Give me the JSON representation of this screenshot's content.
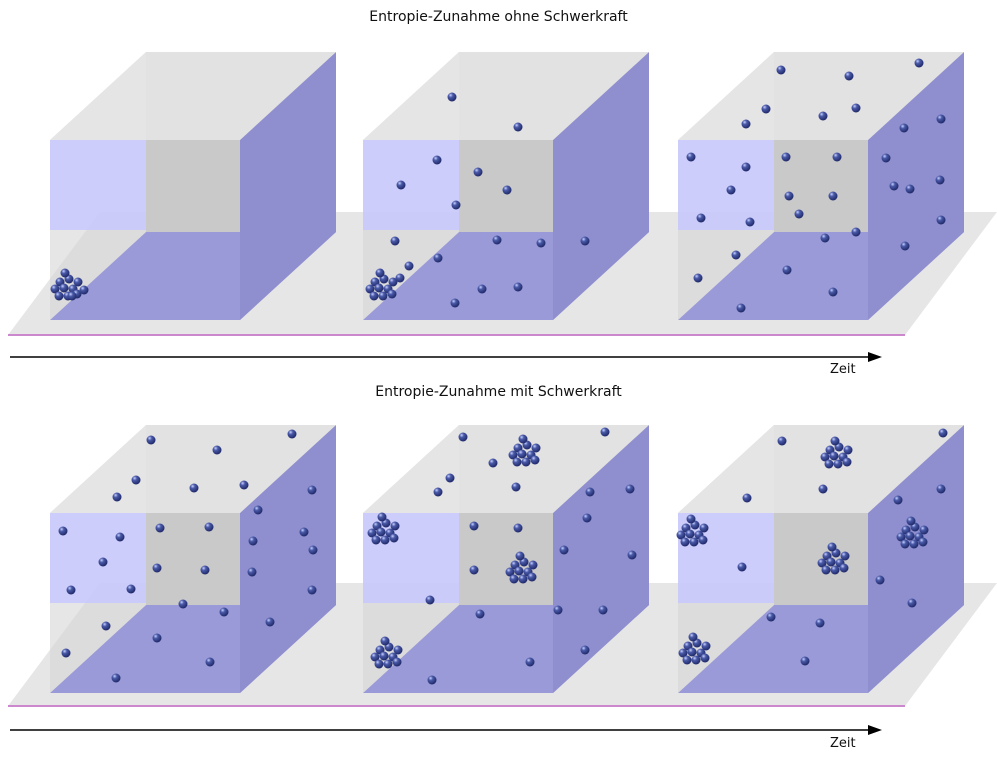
{
  "titles": {
    "top": "Entropie-Zunahme ohne Schwerkraft",
    "bottom": "Entropie-Zunahme mit Schwerkraft"
  },
  "time_label": "Zeit",
  "colors": {
    "floor": "#e6e6e6",
    "floor_edge": "#cc88cc",
    "wall_back": "#c9c9c9",
    "wall_side": "#8f8fcf",
    "wall_front": "#c8c8ff",
    "bottom_face": "#9a9ad8",
    "top_face": "#e4e4e4",
    "ball": "#202a6a",
    "arrow": "#000000"
  }
}
